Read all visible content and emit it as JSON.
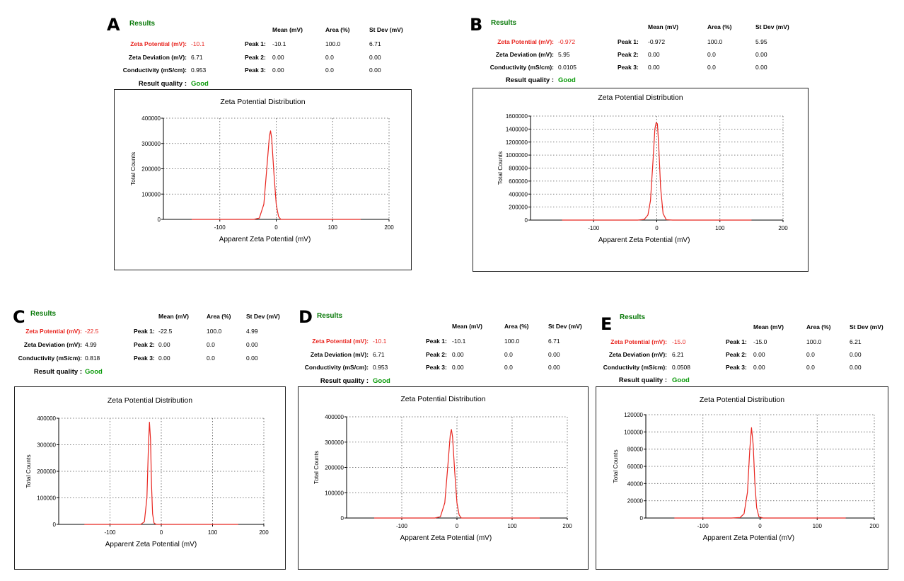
{
  "panels": [
    {
      "letter": "A",
      "results_title": "Results",
      "summary": [
        {
          "label": "Zeta Potential (mV):",
          "value": "-10.1",
          "highlight": "red"
        },
        {
          "label": "Zeta Deviation (mV):",
          "value": "6.71"
        },
        {
          "label": "Conductivity (mS/cm):",
          "value": "0.953"
        },
        {
          "label": "Result quality :",
          "value": "Good",
          "highlight": "green"
        }
      ],
      "peak_headers": [
        "Mean (mV)",
        "Area (%)",
        "St Dev (mV)"
      ],
      "peaks": [
        {
          "label": "Peak 1:",
          "mean": "-10.1",
          "area": "100.0",
          "stdev": "6.71"
        },
        {
          "label": "Peak 2:",
          "mean": "0.00",
          "area": "0.0",
          "stdev": "0.00"
        },
        {
          "label": "Peak 3:",
          "mean": "0.00",
          "area": "0.0",
          "stdev": "0.00"
        }
      ]
    },
    {
      "letter": "B",
      "results_title": "Results",
      "summary": [
        {
          "label": "Zeta Potential (mV):",
          "value": "-0.972",
          "highlight": "red"
        },
        {
          "label": "Zeta Deviation (mV):",
          "value": "5.95"
        },
        {
          "label": "Conductivity (mS/cm):",
          "value": "0.0105"
        },
        {
          "label": "Result quality :",
          "value": "Good",
          "highlight": "green"
        }
      ],
      "peak_headers": [
        "Mean (mV)",
        "Area (%)",
        "St Dev (mV)"
      ],
      "peaks": [
        {
          "label": "Peak 1:",
          "mean": "-0.972",
          "area": "100.0",
          "stdev": "5.95"
        },
        {
          "label": "Peak 2:",
          "mean": "0.00",
          "area": "0.0",
          "stdev": "0.00"
        },
        {
          "label": "Peak 3:",
          "mean": "0.00",
          "area": "0.0",
          "stdev": "0.00"
        }
      ]
    },
    {
      "letter": "C",
      "results_title": "Results",
      "summary": [
        {
          "label": "Zeta Potential (mV):",
          "value": "-22.5",
          "highlight": "red"
        },
        {
          "label": "Zeta Deviation (mV):",
          "value": "4.99"
        },
        {
          "label": "Conductivity (mS/cm):",
          "value": "0.818"
        },
        {
          "label": "Result quality :",
          "value": "Good",
          "highlight": "green"
        }
      ],
      "peak_headers": [
        "Mean (mV)",
        "Area (%)",
        "St Dev (mV)"
      ],
      "peaks": [
        {
          "label": "Peak 1:",
          "mean": "-22.5",
          "area": "100.0",
          "stdev": "4.99"
        },
        {
          "label": "Peak 2:",
          "mean": "0.00",
          "area": "0.0",
          "stdev": "0.00"
        },
        {
          "label": "Peak 3:",
          "mean": "0.00",
          "area": "0.0",
          "stdev": "0.00"
        }
      ]
    },
    {
      "letter": "D",
      "results_title": "Results",
      "summary": [
        {
          "label": "Zeta Potential (mV):",
          "value": "-10.1",
          "highlight": "red"
        },
        {
          "label": "Zeta Deviation (mV):",
          "value": "6.71"
        },
        {
          "label": "Conductivity (mS/cm):",
          "value": "0.953"
        },
        {
          "label": "Result quality :",
          "value": "Good",
          "highlight": "green"
        }
      ],
      "peak_headers": [
        "Mean (mV)",
        "Area (%)",
        "St Dev (mV)"
      ],
      "peaks": [
        {
          "label": "Peak 1:",
          "mean": "-10.1",
          "area": "100.0",
          "stdev": "6.71"
        },
        {
          "label": "Peak 2:",
          "mean": "0.00",
          "area": "0.0",
          "stdev": "0.00"
        },
        {
          "label": "Peak 3:",
          "mean": "0.00",
          "area": "0.0",
          "stdev": "0.00"
        }
      ]
    },
    {
      "letter": "E",
      "results_title": "Results",
      "summary": [
        {
          "label": "Zeta Potential (mV):",
          "value": "-15.0",
          "highlight": "red"
        },
        {
          "label": "Zeta Deviation (mV):",
          "value": "6.21"
        },
        {
          "label": "Conductivity (mS/cm):",
          "value": "0.0508"
        },
        {
          "label": "Result quality :",
          "value": "Good",
          "highlight": "green"
        }
      ],
      "peak_headers": [
        "Mean (mV)",
        "Area (%)",
        "St Dev (mV)"
      ],
      "peaks": [
        {
          "label": "Peak 1:",
          "mean": "-15.0",
          "area": "100.0",
          "stdev": "6.21"
        },
        {
          "label": "Peak 2:",
          "mean": "0.00",
          "area": "0.0",
          "stdev": "0.00"
        },
        {
          "label": "Peak 3:",
          "mean": "0.00",
          "area": "0.0",
          "stdev": "0.00"
        }
      ]
    }
  ],
  "chart_data": [
    {
      "type": "line",
      "panel": "A",
      "title": "Zeta Potential Distribution",
      "xlabel": "Apparent Zeta Potential (mV)",
      "ylabel": "Total Counts",
      "xlim": [
        -200,
        200
      ],
      "ylim": [
        0,
        400000
      ],
      "xticks": [
        -100,
        0,
        100,
        200
      ],
      "yticks": [
        0,
        100000,
        200000,
        300000,
        400000
      ],
      "grid": true,
      "line_color": "#e8251f",
      "series": [
        {
          "x": [
            -150,
            -40,
            -30,
            -22,
            -16,
            -12,
            -10,
            -8,
            -4,
            0,
            4,
            8,
            20,
            150
          ],
          "y": [
            0,
            0,
            5000,
            60000,
            220000,
            330000,
            350000,
            320000,
            180000,
            60000,
            12000,
            0,
            0,
            0
          ]
        }
      ]
    },
    {
      "type": "line",
      "panel": "B",
      "title": "Zeta Potential Distribution",
      "xlabel": "Apparent Zeta Potential (mV)",
      "ylabel": "Total Counts",
      "xlim": [
        -200,
        200
      ],
      "ylim": [
        0,
        1600000
      ],
      "xticks": [
        -100,
        0,
        100,
        200
      ],
      "yticks": [
        0,
        200000,
        400000,
        600000,
        800000,
        1000000,
        1200000,
        1400000,
        1600000
      ],
      "grid": true,
      "line_color": "#e8251f",
      "series": [
        {
          "x": [
            -150,
            -30,
            -20,
            -14,
            -10,
            -6,
            -3,
            -1,
            1,
            3,
            6,
            10,
            15,
            25,
            150
          ],
          "y": [
            0,
            0,
            10000,
            80000,
            300000,
            900000,
            1400000,
            1500000,
            1480000,
            1150000,
            500000,
            100000,
            5000,
            0,
            0
          ]
        }
      ]
    },
    {
      "type": "line",
      "panel": "C",
      "title": "Zeta Potential Distribution",
      "xlabel": "Apparent Zeta Potential (mV)",
      "ylabel": "Total Counts",
      "xlim": [
        -200,
        200
      ],
      "ylim": [
        0,
        400000
      ],
      "xticks": [
        -100,
        0,
        100,
        200
      ],
      "yticks": [
        0,
        100000,
        200000,
        300000,
        400000
      ],
      "grid": true,
      "line_color": "#e8251f",
      "series": [
        {
          "x": [
            -150,
            -40,
            -33,
            -28,
            -25,
            -23,
            -21,
            -19,
            -17,
            -14,
            -10,
            150
          ],
          "y": [
            0,
            0,
            10000,
            100000,
            300000,
            385000,
            320000,
            150000,
            40000,
            5000,
            0,
            0
          ]
        }
      ]
    },
    {
      "type": "line",
      "panel": "D",
      "title": "Zeta Potential Distribution",
      "xlabel": "Apparent Zeta Potential (mV)",
      "ylabel": "Total Counts",
      "xlim": [
        -200,
        200
      ],
      "ylim": [
        0,
        400000
      ],
      "xticks": [
        -100,
        0,
        100,
        200
      ],
      "yticks": [
        0,
        100000,
        200000,
        300000,
        400000
      ],
      "grid": true,
      "line_color": "#e8251f",
      "series": [
        {
          "x": [
            -150,
            -40,
            -30,
            -22,
            -16,
            -12,
            -10,
            -8,
            -4,
            0,
            4,
            8,
            20,
            150
          ],
          "y": [
            0,
            0,
            5000,
            60000,
            220000,
            330000,
            350000,
            320000,
            180000,
            60000,
            12000,
            0,
            0,
            0
          ]
        }
      ]
    },
    {
      "type": "line",
      "panel": "E",
      "title": "Zeta Potential Distribution",
      "xlabel": "Apparent Zeta Potential (mV)",
      "ylabel": "Total Counts",
      "xlim": [
        -200,
        200
      ],
      "ylim": [
        0,
        120000
      ],
      "xticks": [
        -100,
        0,
        100,
        200
      ],
      "yticks": [
        0,
        20000,
        40000,
        60000,
        80000,
        100000,
        120000
      ],
      "grid": true,
      "line_color": "#e8251f",
      "series": [
        {
          "x": [
            -150,
            -50,
            -35,
            -28,
            -22,
            -18,
            -15,
            -12,
            -9,
            -6,
            -2,
            5,
            150
          ],
          "y": [
            0,
            0,
            500,
            5000,
            30000,
            80000,
            105000,
            85000,
            40000,
            12000,
            1500,
            0,
            0
          ]
        }
      ]
    }
  ]
}
